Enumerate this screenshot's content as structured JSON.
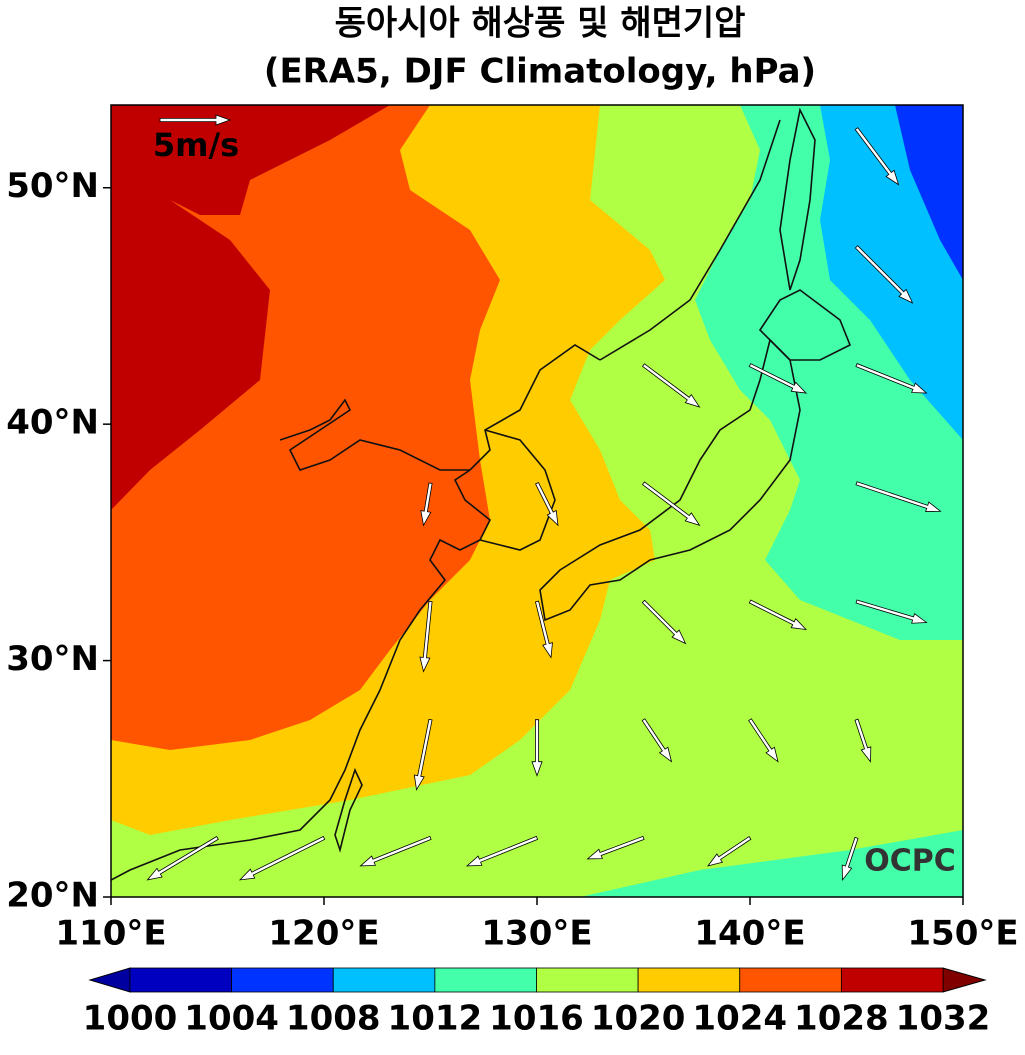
{
  "chart_data": {
    "type": "vector-map",
    "title": "동아시아 해상풍 및 해면기압",
    "subtitle": "(ERA5, DJF Climatology, hPa)",
    "xlim": [
      110,
      150
    ],
    "ylim": [
      20,
      53.5
    ],
    "xticks": [
      {
        "value": 110,
        "label": "110°E"
      },
      {
        "value": 120,
        "label": "120°E"
      },
      {
        "value": 130,
        "label": "130°E"
      },
      {
        "value": 140,
        "label": "140°E"
      },
      {
        "value": 150,
        "label": "150°E"
      }
    ],
    "yticks": [
      {
        "value": 20,
        "label": "20°N"
      },
      {
        "value": 30,
        "label": "30°N"
      },
      {
        "value": 40,
        "label": "40°N"
      },
      {
        "value": 50,
        "label": "50°N"
      }
    ],
    "reference_vector": {
      "value": 5,
      "label": "5m/s"
    },
    "watermark": "OCPC",
    "colorbar": {
      "levels": [
        1000,
        1004,
        1008,
        1012,
        1016,
        1020,
        1024,
        1028,
        1032
      ],
      "colors": [
        "#0000c0",
        "#0033ff",
        "#00c0ff",
        "#44ffaa",
        "#b0ff44",
        "#ffcc00",
        "#ff5500",
        "#c00000"
      ],
      "under_color": "#0000a0",
      "over_color": "#800000"
    },
    "vectors": {
      "lon": [
        145,
        145,
        135,
        140,
        145,
        125,
        130,
        135,
        145,
        125,
        130,
        135,
        140,
        145,
        125,
        130,
        135,
        140,
        145,
        115,
        120,
        125,
        130,
        135,
        140,
        145
      ],
      "lat": [
        52.5,
        47.5,
        42.5,
        42.5,
        42.5,
        37.5,
        37.5,
        37.5,
        37.5,
        32.5,
        32.5,
        32.5,
        32.5,
        32.5,
        27.5,
        27.5,
        27.5,
        27.5,
        27.5,
        22.5,
        22.5,
        22.5,
        22.5,
        22.5,
        22.5,
        22.5
      ],
      "u": [
        3,
        4,
        4,
        4,
        5,
        -0.5,
        1.5,
        4,
        6,
        -0.5,
        1,
        3,
        4,
        5,
        -1,
        0,
        2,
        2,
        1,
        -5,
        -6,
        -5,
        -5,
        -4,
        -3,
        -1
      ],
      "v": [
        -4,
        -4,
        -3,
        -2,
        -2,
        -3,
        -3,
        -3,
        -2,
        -5,
        -4,
        -3,
        -2,
        -1.5,
        -5,
        -4,
        -3,
        -3,
        -3,
        -3,
        -3,
        -2,
        -2,
        -1.5,
        -2,
        -3
      ]
    }
  }
}
